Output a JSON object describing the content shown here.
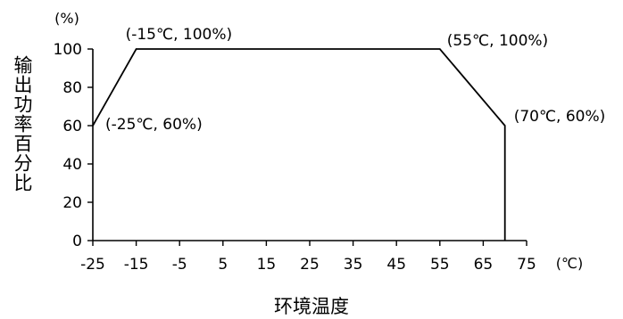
{
  "chart_data": {
    "type": "line",
    "title": "",
    "xlabel": "环境温度",
    "ylabel": "输出功率百分比",
    "x_unit": "(℃)",
    "y_unit": "(%)",
    "xlim": [
      -25,
      75
    ],
    "ylim": [
      0,
      100
    ],
    "xticks": [
      "-25",
      "-15",
      "-5",
      "5",
      "15",
      "25",
      "35",
      "45",
      "55",
      "65",
      "75"
    ],
    "yticks": [
      "0",
      "20",
      "40",
      "60",
      "80",
      "100"
    ],
    "grid": false,
    "series": [
      {
        "x": [
          -25,
          -15,
          55,
          70,
          70
        ],
        "y": [
          60,
          100,
          100,
          60,
          0
        ]
      }
    ],
    "annotations": [
      {
        "text": "(-25℃, 60%)",
        "x": -25,
        "y": 60
      },
      {
        "text": "(-15℃, 100%)",
        "x": -15,
        "y": 100
      },
      {
        "text": "(55℃, 100%)",
        "x": 55,
        "y": 100
      },
      {
        "text": "(70℃, 60%)",
        "x": 70,
        "y": 60
      }
    ],
    "line_color": "#000000"
  }
}
